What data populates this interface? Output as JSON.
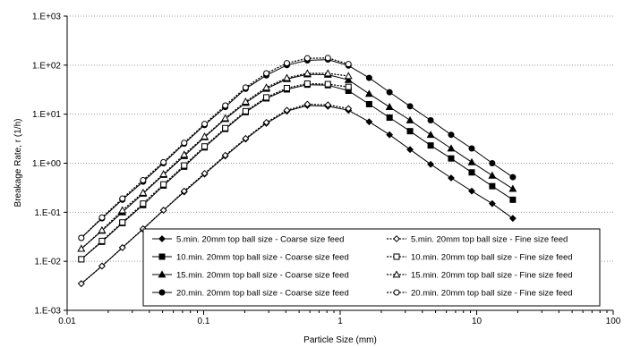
{
  "chart_data": {
    "type": "line",
    "title": "",
    "xlabel": "Particle Size (mm)",
    "ylabel": "Breakage Rate, r (1/h)",
    "xscale": "log",
    "yscale": "log",
    "xlim": [
      0.01,
      100
    ],
    "ylim": [
      0.001,
      1000
    ],
    "x_ticks": [
      "0.01",
      "0.1",
      "1",
      "10",
      "100"
    ],
    "y_ticks": [
      "1.E-03",
      "1.E-02",
      "1.E-01",
      "1.E+00",
      "1.E+01",
      "1.E+02",
      "1.E+03"
    ],
    "grid": "horizontal dotted",
    "legend_position": "bottom-center",
    "series": [
      {
        "name": "5.min. 20mm top ball size - Coarse size feed",
        "marker": "diamond-filled",
        "line": "solid",
        "x": [
          0.0127,
          0.018,
          0.0254,
          0.036,
          0.0508,
          0.072,
          0.1016,
          0.144,
          0.203,
          0.288,
          0.407,
          0.575,
          0.813,
          1.15,
          1.63,
          2.3,
          3.25,
          4.6,
          6.5,
          9.2,
          13.0,
          18.4
        ],
        "values": [
          0.0035,
          0.008,
          0.019,
          0.045,
          0.11,
          0.26,
          0.6,
          1.4,
          3.1,
          6.5,
          11.5,
          15,
          14.5,
          12,
          7,
          3.8,
          1.9,
          0.95,
          0.5,
          0.27,
          0.15,
          0.075
        ]
      },
      {
        "name": "10.min. 20mm top ball size - Coarse size feed",
        "marker": "square-filled",
        "line": "solid",
        "x": [
          0.0127,
          0.018,
          0.0254,
          0.036,
          0.0508,
          0.072,
          0.1016,
          0.144,
          0.203,
          0.288,
          0.407,
          0.575,
          0.813,
          1.15,
          1.63,
          2.3,
          3.25,
          4.6,
          6.5,
          9.2,
          13.0,
          18.4
        ],
        "values": [
          0.011,
          0.025,
          0.06,
          0.14,
          0.35,
          0.85,
          2.1,
          5,
          11,
          21,
          32,
          40,
          39,
          30,
          16,
          8.5,
          4.5,
          2.3,
          1.25,
          0.65,
          0.34,
          0.18
        ]
      },
      {
        "name": "15.min. 20mm top ball size - Coarse size feed",
        "marker": "triangle-filled",
        "line": "solid",
        "x": [
          0.0127,
          0.018,
          0.0254,
          0.036,
          0.0508,
          0.072,
          0.1016,
          0.144,
          0.203,
          0.288,
          0.407,
          0.575,
          0.813,
          1.15,
          1.63,
          2.3,
          3.25,
          4.6,
          6.5,
          9.2,
          13.0,
          18.4
        ],
        "values": [
          0.018,
          0.042,
          0.1,
          0.24,
          0.58,
          1.4,
          3.4,
          8,
          17,
          33,
          52,
          65,
          64,
          50,
          26,
          14,
          7.5,
          3.8,
          2,
          1.05,
          0.56,
          0.3
        ]
      },
      {
        "name": "20.min. 20mm top ball size - Coarse size feed",
        "marker": "circle-filled",
        "line": "solid",
        "x": [
          0.0127,
          0.018,
          0.0254,
          0.036,
          0.0508,
          0.072,
          0.1016,
          0.144,
          0.203,
          0.288,
          0.407,
          0.575,
          0.813,
          1.15,
          1.63,
          2.3,
          3.25,
          4.6,
          6.5,
          9.2,
          13.0,
          18.4
        ],
        "values": [
          0.03,
          0.075,
          0.18,
          0.42,
          1.0,
          2.5,
          6,
          14,
          33,
          62,
          100,
          125,
          130,
          98,
          55,
          28,
          14.5,
          7.5,
          3.8,
          2,
          1.0,
          0.52
        ]
      },
      {
        "name": "5.min. 20mm top ball size - Fine size feed",
        "marker": "diamond-open",
        "line": "dotted",
        "x": [
          0.0127,
          0.018,
          0.0254,
          0.036,
          0.0508,
          0.072,
          0.1016,
          0.144,
          0.203,
          0.288,
          0.407,
          0.575,
          0.813,
          1.15
        ],
        "values": [
          0.0035,
          0.008,
          0.019,
          0.046,
          0.11,
          0.27,
          0.62,
          1.45,
          3.2,
          6.8,
          12,
          16,
          15.5,
          13
        ]
      },
      {
        "name": "10.min. 20mm top ball size - Fine size feed",
        "marker": "square-open",
        "line": "dotted",
        "x": [
          0.0127,
          0.018,
          0.0254,
          0.036,
          0.0508,
          0.072,
          0.1016,
          0.144,
          0.203,
          0.288,
          0.407,
          0.575,
          0.813,
          1.15
        ],
        "values": [
          0.011,
          0.026,
          0.062,
          0.15,
          0.37,
          0.9,
          2.2,
          5.2,
          11.5,
          22,
          34,
          42,
          41,
          36
        ]
      },
      {
        "name": "15.min. 20mm top ball size - Fine size feed",
        "marker": "triangle-open",
        "line": "dotted",
        "x": [
          0.0127,
          0.018,
          0.0254,
          0.036,
          0.0508,
          0.072,
          0.1016,
          0.144,
          0.203,
          0.288,
          0.407,
          0.575,
          0.813,
          1.15
        ],
        "values": [
          0.018,
          0.043,
          0.11,
          0.25,
          0.6,
          1.5,
          3.5,
          8.3,
          18,
          35,
          55,
          68,
          68,
          60
        ]
      },
      {
        "name": "20.min. 20mm top ball size - Fine size feed",
        "marker": "circle-open",
        "line": "dotted",
        "x": [
          0.0127,
          0.018,
          0.0254,
          0.036,
          0.0508,
          0.072,
          0.1016,
          0.144,
          0.203,
          0.288,
          0.407,
          0.575,
          0.813,
          1.15
        ],
        "values": [
          0.03,
          0.078,
          0.19,
          0.45,
          1.05,
          2.6,
          6.3,
          15,
          35,
          68,
          110,
          138,
          140,
          105
        ]
      }
    ]
  }
}
